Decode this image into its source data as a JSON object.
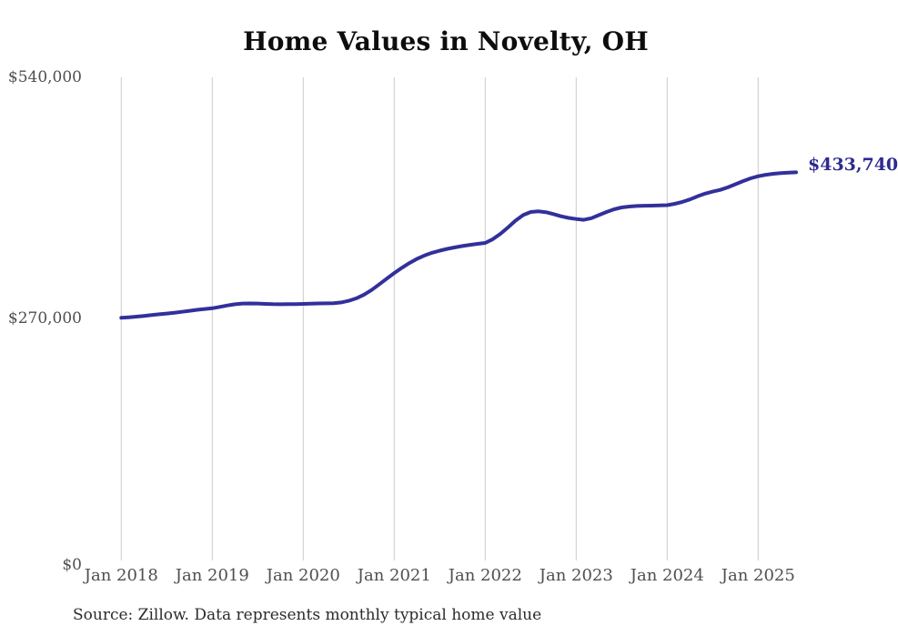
{
  "page": {
    "title": "Home Values in Novelty, OH",
    "source_note": "Source: Zillow. Data represents monthly typical home value"
  },
  "chart_data": {
    "type": "line",
    "title": "Home Values in Novelty, OH",
    "x_axis": {
      "start": "Jan 2018",
      "end": "Jun 2025",
      "frequency": "monthly",
      "tick_labels": [
        "Jan 2018",
        "Jan 2019",
        "Jan 2020",
        "Jan 2021",
        "Jan 2022",
        "Jan 2023",
        "Jan 2024",
        "Jan 2025"
      ]
    },
    "y_axis": {
      "tick_labels": [
        "$540,000",
        "$270,000",
        "$0"
      ],
      "tick_values": [
        540000,
        270000,
        0
      ],
      "range": [
        0,
        540000
      ]
    },
    "grid": "vertical-only",
    "legend": "none",
    "series": [
      {
        "name": "Monthly typical home value",
        "values": [
          271000,
          271600,
          272300,
          273100,
          274000,
          274900,
          275800,
          276700,
          277700,
          278800,
          279900,
          280800,
          281700,
          283200,
          284800,
          286100,
          286900,
          287100,
          286900,
          286500,
          286200,
          286100,
          286200,
          286300,
          286500,
          286700,
          287000,
          287200,
          287300,
          288200,
          290000,
          292800,
          296800,
          302000,
          308200,
          314700,
          321000,
          326800,
          332200,
          336900,
          340700,
          343700,
          346100,
          348100,
          349800,
          351300,
          352600,
          353700,
          354700,
          358900,
          364900,
          372000,
          379700,
          385900,
          389300,
          390100,
          389100,
          387000,
          384600,
          382700,
          381500,
          380600,
          382400,
          385900,
          389400,
          392400,
          394400,
          395500,
          396100,
          396400,
          396500,
          396700,
          397000,
          398500,
          400600,
          403400,
          406900,
          409900,
          412100,
          414100,
          416900,
          420400,
          423900,
          427000,
          429400,
          431000,
          432100,
          432800,
          433300,
          433740
        ]
      }
    ],
    "end_label": "$433,740",
    "end_value": 433740,
    "colors": {
      "line": "#32309b",
      "gridline": "#cccccc",
      "tick_text": "#4f4f4f",
      "title_text": "#0d0d0d",
      "end_label_text": "#2d2a8f",
      "source_text": "#2b2b2b"
    }
  }
}
